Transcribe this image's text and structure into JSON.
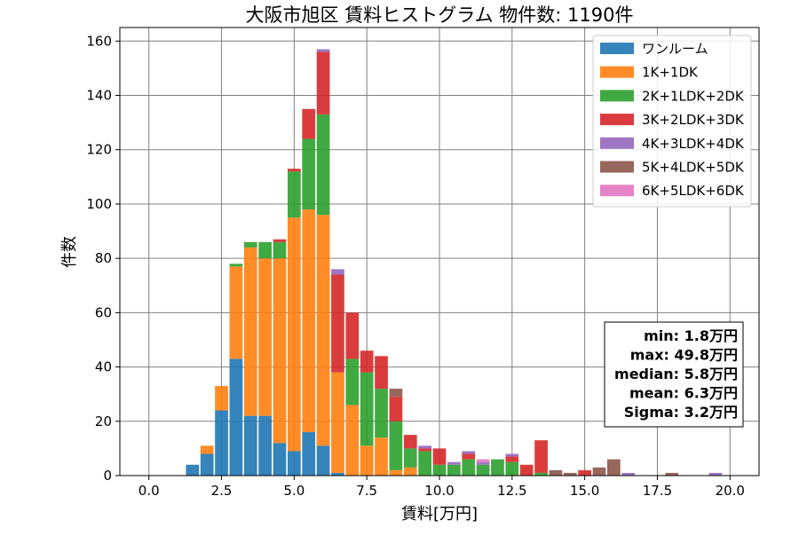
{
  "chart_data": {
    "type": "bar",
    "stacked": true,
    "title": "大阪市旭区 賃料ヒストグラム 物件数: 1190件",
    "xlabel": "賃料[万円]",
    "ylabel": "件数",
    "xlim": [
      -1.0,
      21.0
    ],
    "ylim": [
      0,
      165
    ],
    "xticks": [
      "0.0",
      "2.5",
      "5.0",
      "7.5",
      "10.0",
      "12.5",
      "15.0",
      "17.5",
      "20.0"
    ],
    "yticks": [
      "0",
      "20",
      "40",
      "60",
      "80",
      "100",
      "120",
      "140",
      "160"
    ],
    "grid": true,
    "legend_position": "top-right",
    "bin_width": 0.5,
    "x": [
      1.5,
      2.0,
      2.5,
      3.0,
      3.5,
      4.0,
      4.5,
      5.0,
      5.5,
      6.0,
      6.5,
      7.0,
      7.5,
      8.0,
      8.5,
      9.0,
      9.5,
      10.0,
      10.5,
      11.0,
      11.5,
      12.0,
      12.5,
      13.0,
      13.5,
      14.0,
      14.5,
      15.0,
      15.5,
      16.0,
      16.5,
      18.0,
      19.5
    ],
    "series": [
      {
        "name": "ワンルーム",
        "color": "#1f77b4",
        "values": [
          4,
          8,
          24,
          43,
          22,
          22,
          12,
          9,
          16,
          11,
          1,
          0,
          0,
          0,
          0,
          0,
          0,
          0,
          0,
          0,
          0,
          0,
          0,
          0,
          0,
          0,
          0,
          0,
          0,
          0,
          0,
          0,
          0
        ]
      },
      {
        "name": "1K+1DK",
        "color": "#ff7f0e",
        "values": [
          0,
          3,
          9,
          34,
          62,
          58,
          68,
          86,
          82,
          85,
          37,
          26,
          11,
          14,
          2,
          3,
          0,
          0,
          0,
          0,
          0,
          0,
          0,
          0,
          0,
          0,
          0,
          0,
          0,
          0,
          0,
          0,
          0
        ]
      },
      {
        "name": "2K+1LDK+2DK",
        "color": "#2ca02c",
        "values": [
          0,
          0,
          0,
          1,
          2,
          6,
          6,
          17,
          26,
          37,
          0,
          17,
          27,
          18,
          18,
          7,
          9,
          4,
          4,
          6,
          4,
          6,
          5,
          0,
          1,
          0,
          0,
          0,
          0,
          0,
          0,
          0,
          0
        ]
      },
      {
        "name": "3K+2LDK+3DK",
        "color": "#d62728",
        "values": [
          0,
          0,
          0,
          0,
          0,
          0,
          1,
          1,
          11,
          23,
          36,
          17,
          8,
          12,
          9,
          5,
          1,
          6,
          0,
          2,
          0,
          0,
          2,
          4,
          12,
          0,
          0,
          2,
          0,
          0,
          0,
          0,
          0
        ]
      },
      {
        "name": "4K+3LDK+4DK",
        "color": "#9467bd",
        "values": [
          0,
          0,
          0,
          0,
          0,
          0,
          0,
          0,
          0,
          1,
          2,
          0,
          0,
          0,
          0,
          0,
          1,
          0,
          1,
          1,
          1,
          0,
          1,
          0,
          0,
          0,
          0,
          0,
          0,
          0,
          1,
          0,
          1
        ]
      },
      {
        "name": "5K+4LDK+5DK",
        "color": "#8c564b",
        "values": [
          0,
          0,
          0,
          0,
          0,
          0,
          0,
          0,
          0,
          0,
          0,
          0,
          0,
          0,
          3,
          0,
          0,
          0,
          0,
          0,
          0,
          0,
          0,
          0,
          0,
          2,
          1,
          0,
          3,
          6,
          0,
          1,
          0
        ]
      },
      {
        "name": "6K+5LDK+6DK",
        "color": "#e377c2",
        "values": [
          0,
          0,
          0,
          0,
          0,
          0,
          0,
          0,
          0,
          0,
          0,
          0,
          0,
          0,
          0,
          0,
          0,
          0,
          0,
          0,
          1,
          0,
          0,
          0,
          0,
          0,
          0,
          0,
          0,
          0,
          0,
          0,
          0
        ]
      }
    ],
    "stats_box": [
      "min: 1.8万円",
      "max: 49.8万円",
      "median: 5.8万円",
      "mean: 6.3万円",
      "Sigma: 3.2万円"
    ]
  }
}
